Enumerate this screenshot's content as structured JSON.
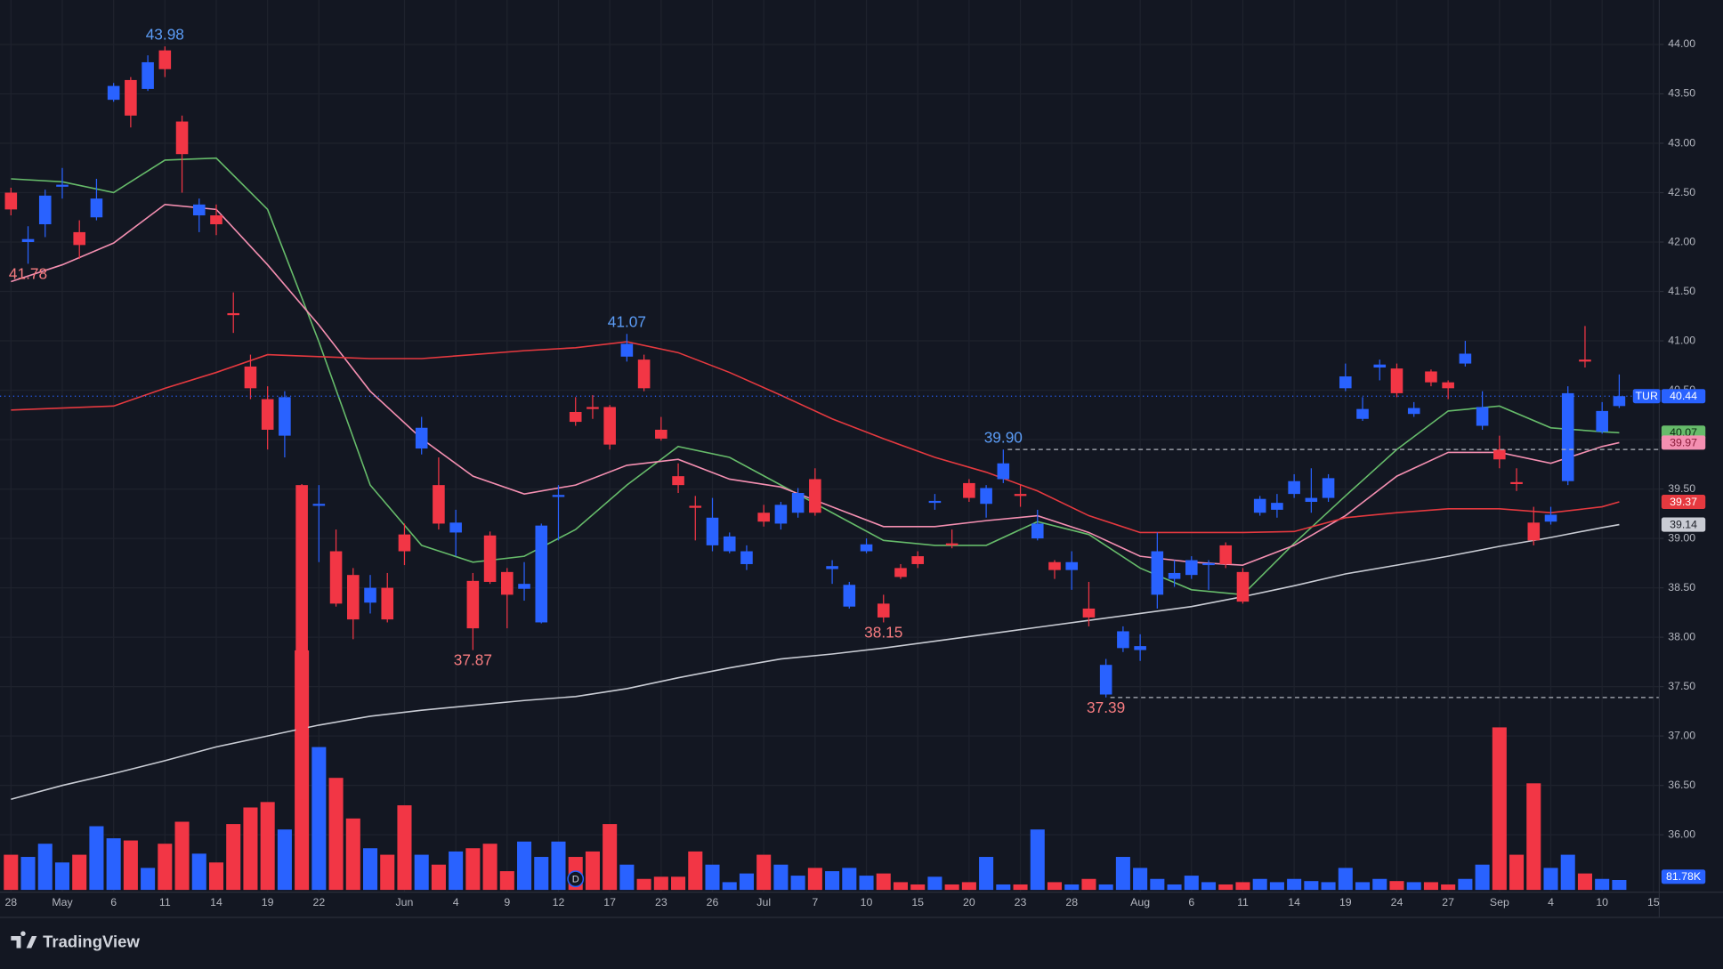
{
  "brand": "TradingView",
  "chart_data": {
    "type": "candlestick",
    "symbol": "TUR",
    "up_color": "#2962ff",
    "down_color": "#f23645",
    "high_label_color": "#5b9cf6",
    "low_label_color": "#f77c80",
    "grid": true,
    "xlim": [
      -0.64,
      96.34
    ],
    "ylim": [
      35.42,
      44.45
    ],
    "volume_ylim": [
      0,
      2400000
    ],
    "xticks": [
      {
        "value": 0,
        "label": "28"
      },
      {
        "value": 3,
        "label": "May"
      },
      {
        "value": 6,
        "label": "6"
      },
      {
        "value": 9,
        "label": "11"
      },
      {
        "value": 12,
        "label": "14"
      },
      {
        "value": 15,
        "label": "19"
      },
      {
        "value": 18,
        "label": "22"
      },
      {
        "value": 23,
        "label": "Jun"
      },
      {
        "value": 26,
        "label": "4"
      },
      {
        "value": 29,
        "label": "9"
      },
      {
        "value": 32,
        "label": "12"
      },
      {
        "value": 35,
        "label": "17"
      },
      {
        "value": 38,
        "label": "23"
      },
      {
        "value": 41,
        "label": "26"
      },
      {
        "value": 44,
        "label": "Jul"
      },
      {
        "value": 47,
        "label": "7"
      },
      {
        "value": 50,
        "label": "10"
      },
      {
        "value": 53,
        "label": "15"
      },
      {
        "value": 56,
        "label": "20"
      },
      {
        "value": 59,
        "label": "23"
      },
      {
        "value": 62,
        "label": "28"
      },
      {
        "value": 66,
        "label": "Aug"
      },
      {
        "value": 69,
        "label": "6"
      },
      {
        "value": 72,
        "label": "11"
      },
      {
        "value": 75,
        "label": "14"
      },
      {
        "value": 78,
        "label": "19"
      },
      {
        "value": 81,
        "label": "24"
      },
      {
        "value": 84,
        "label": "27"
      },
      {
        "value": 87,
        "label": "Sep"
      },
      {
        "value": 90,
        "label": "4"
      },
      {
        "value": 93,
        "label": "10"
      },
      {
        "value": 96,
        "label": "15"
      }
    ],
    "yticks": [
      {
        "value": 36,
        "label": "36.00"
      },
      {
        "value": 36.5,
        "label": "36.50"
      },
      {
        "value": 37,
        "label": "37.00"
      },
      {
        "value": 37.5,
        "label": "37.50"
      },
      {
        "value": 38,
        "label": "38.00"
      },
      {
        "value": 38.5,
        "label": "38.50"
      },
      {
        "value": 39,
        "label": "39.00"
      },
      {
        "value": 39.5,
        "label": "39.50"
      },
      {
        "value": 40,
        "label": "40.00"
      },
      {
        "value": 40.5,
        "label": "40.50"
      },
      {
        "value": 41,
        "label": "41.00"
      },
      {
        "value": 41.5,
        "label": "41.50"
      },
      {
        "value": 42,
        "label": "42.00"
      },
      {
        "value": 42.5,
        "label": "42.50"
      },
      {
        "value": 43,
        "label": "43.00"
      },
      {
        "value": 43.5,
        "label": "43.50"
      },
      {
        "value": 44,
        "label": "44.00"
      }
    ],
    "open": [
      42.5,
      42.0,
      42.18,
      42.56,
      42.1,
      42.25,
      43.44,
      43.64,
      43.55,
      43.94,
      43.22,
      42.27,
      42.27,
      41.28,
      40.74,
      40.41,
      40.04,
      39.54,
      39.33,
      38.87,
      38.63,
      38.35,
      38.5,
      39.04,
      39.91,
      39.54,
      39.06,
      38.57,
      39.03,
      38.66,
      38.49,
      38.15,
      39.42,
      40.28,
      40.33,
      40.33,
      40.84,
      40.81,
      40.1,
      39.63,
      39.33,
      38.93,
      38.87,
      38.74,
      39.26,
      39.15,
      39.26,
      39.6,
      38.69,
      38.31,
      38.87,
      38.34,
      38.7,
      38.82,
      39.36,
      38.95,
      39.56,
      39.35,
      39.6,
      39.45,
      39.0,
      38.76,
      38.68,
      38.29,
      37.42,
      37.89,
      37.87,
      38.43,
      38.59,
      38.63,
      38.73,
      38.93,
      38.66,
      39.26,
      39.29,
      39.45,
      39.37,
      39.41,
      40.52,
      40.21,
      40.73,
      40.72,
      40.26,
      40.69,
      40.58,
      40.77,
      40.14,
      39.9,
      39.57,
      39.16,
      39.17,
      39.58,
      40.81,
      40.08,
      40.34
    ],
    "high": [
      42.55,
      42.16,
      42.53,
      42.75,
      42.22,
      42.64,
      43.61,
      43.67,
      43.89,
      43.98,
      43.28,
      42.44,
      42.38,
      41.49,
      40.86,
      40.54,
      40.49,
      39.55,
      39.54,
      39.09,
      38.7,
      38.63,
      38.65,
      39.15,
      40.23,
      39.82,
      39.29,
      38.65,
      39.07,
      38.7,
      38.76,
      39.15,
      39.54,
      40.43,
      40.45,
      40.35,
      41.07,
      40.86,
      40.23,
      39.76,
      39.43,
      39.41,
      39.06,
      38.93,
      39.34,
      39.37,
      39.51,
      39.71,
      38.78,
      38.56,
      39.0,
      38.43,
      38.74,
      38.87,
      39.45,
      39.09,
      39.6,
      39.54,
      39.9,
      39.54,
      39.29,
      38.78,
      38.87,
      38.56,
      37.78,
      38.11,
      38.03,
      39.06,
      38.78,
      38.82,
      38.78,
      38.96,
      38.7,
      39.43,
      39.45,
      39.65,
      39.71,
      39.65,
      40.77,
      40.43,
      40.81,
      40.77,
      40.38,
      40.71,
      40.6,
      41.0,
      40.49,
      40.04,
      39.71,
      39.32,
      39.32,
      40.54,
      41.15,
      40.38,
      40.66
    ],
    "low": [
      42.27,
      41.78,
      42.05,
      42.44,
      41.83,
      42.22,
      43.42,
      43.16,
      43.53,
      43.67,
      42.5,
      42.1,
      42.07,
      41.08,
      40.41,
      39.9,
      39.82,
      36.3,
      38.76,
      38.31,
      37.98,
      38.24,
      38.15,
      38.73,
      39.85,
      39.09,
      38.82,
      37.87,
      38.54,
      38.09,
      38.37,
      38.14,
      38.98,
      40.14,
      40.21,
      39.9,
      40.79,
      40.49,
      39.99,
      39.46,
      38.98,
      38.87,
      38.85,
      38.68,
      39.12,
      39.09,
      39.21,
      39.23,
      38.54,
      38.29,
      38.85,
      38.15,
      38.59,
      38.7,
      39.29,
      38.9,
      39.37,
      39.21,
      39.56,
      39.32,
      38.98,
      38.59,
      38.48,
      38.11,
      37.39,
      37.85,
      37.76,
      38.29,
      38.51,
      38.59,
      38.48,
      38.7,
      38.34,
      39.23,
      39.21,
      39.41,
      39.26,
      39.37,
      40.49,
      40.19,
      40.6,
      40.43,
      40.23,
      40.54,
      40.41,
      40.74,
      40.1,
      39.71,
      39.48,
      38.93,
      39.14,
      39.54,
      40.73,
      40.06,
      40.32
    ],
    "close": [
      42.33,
      42.03,
      42.47,
      42.58,
      41.97,
      42.44,
      43.58,
      43.28,
      43.82,
      43.75,
      42.89,
      42.38,
      42.18,
      41.26,
      40.52,
      40.1,
      40.43,
      36.36,
      39.35,
      38.34,
      38.18,
      38.5,
      38.18,
      38.87,
      40.12,
      39.15,
      39.16,
      38.09,
      38.56,
      38.43,
      38.54,
      39.13,
      39.44,
      40.18,
      40.31,
      39.95,
      40.97,
      40.52,
      40.01,
      39.54,
      39.31,
      39.21,
      39.02,
      38.87,
      39.17,
      39.34,
      39.46,
      39.26,
      38.72,
      38.53,
      38.94,
      38.2,
      38.61,
      38.74,
      39.38,
      38.93,
      39.41,
      39.51,
      39.76,
      39.43,
      39.15,
      38.68,
      38.76,
      38.2,
      37.72,
      38.06,
      37.91,
      38.87,
      38.65,
      38.78,
      38.75,
      38.74,
      38.36,
      39.4,
      39.36,
      39.58,
      39.41,
      39.61,
      40.64,
      40.31,
      40.76,
      40.47,
      40.32,
      40.58,
      40.52,
      40.87,
      40.33,
      39.8,
      39.55,
      38.98,
      39.24,
      40.47,
      40.79,
      40.29,
      40.44
    ],
    "volume": [
      291000,
      273000,
      382000,
      227000,
      291000,
      527000,
      427000,
      409000,
      182000,
      382000,
      564000,
      300000,
      227000,
      545000,
      682000,
      727000,
      500000,
      1982000,
      1182000,
      927000,
      591000,
      345000,
      291000,
      700000,
      291000,
      209000,
      318000,
      345000,
      382000,
      155000,
      400000,
      273000,
      400000,
      273000,
      318000,
      545000,
      209000,
      91000,
      109000,
      109000,
      318000,
      209000,
      64000,
      136000,
      291000,
      209000,
      118000,
      182000,
      155000,
      182000,
      118000,
      136000,
      64000,
      45000,
      109000,
      45000,
      64000,
      273000,
      45000,
      45000,
      500000,
      64000,
      45000,
      91000,
      45000,
      273000,
      182000,
      91000,
      45000,
      118000,
      64000,
      45000,
      64000,
      91000,
      64000,
      91000,
      73000,
      64000,
      182000,
      64000,
      91000,
      73000,
      64000,
      64000,
      45000,
      91000,
      209000,
      1345000,
      291000,
      882000,
      182000,
      291000,
      136000,
      91000,
      81780
    ],
    "volume_label": "81.78K",
    "dividend": {
      "index": 33,
      "label": "D"
    },
    "moving_averages": [
      {
        "color": "#66bb6a",
        "label_color": "#0b2a10",
        "x": [
          0,
          3,
          6,
          9,
          12,
          15,
          18,
          21,
          24,
          27,
          30,
          33,
          36,
          39,
          42,
          45,
          48,
          51,
          54,
          57,
          60,
          63,
          66,
          69,
          72,
          75,
          78,
          81,
          84,
          87,
          90,
          93,
          94
        ],
        "values": [
          42.64,
          42.61,
          42.5,
          42.83,
          42.85,
          42.33,
          40.99,
          39.54,
          38.93,
          38.76,
          38.82,
          39.09,
          39.54,
          39.93,
          39.82,
          39.54,
          39.26,
          38.98,
          38.93,
          38.93,
          39.17,
          39.04,
          38.7,
          38.48,
          38.43,
          38.95,
          39.43,
          39.9,
          40.29,
          40.34,
          40.12,
          40.08,
          40.07
        ]
      },
      {
        "color": "#f48fb1",
        "label_color": "#8a1c3a",
        "x": [
          0,
          3,
          6,
          9,
          12,
          15,
          18,
          21,
          24,
          27,
          30,
          33,
          36,
          39,
          42,
          45,
          48,
          51,
          54,
          57,
          60,
          63,
          66,
          69,
          72,
          75,
          78,
          81,
          84,
          87,
          90,
          93,
          94
        ],
        "values": [
          41.6,
          41.77,
          41.99,
          42.38,
          42.33,
          41.77,
          41.16,
          40.49,
          40.01,
          39.63,
          39.45,
          39.54,
          39.74,
          39.8,
          39.6,
          39.52,
          39.32,
          39.12,
          39.12,
          39.18,
          39.23,
          39.06,
          38.82,
          38.76,
          38.73,
          38.93,
          39.23,
          39.63,
          39.87,
          39.87,
          39.76,
          39.93,
          39.97
        ]
      },
      {
        "color": "#e5393f",
        "label_color": "#ffffff",
        "x": [
          0,
          3,
          6,
          9,
          12,
          15,
          18,
          21,
          24,
          27,
          30,
          33,
          36,
          39,
          42,
          45,
          48,
          51,
          54,
          57,
          60,
          63,
          66,
          69,
          72,
          75,
          78,
          81,
          84,
          87,
          90,
          93,
          94
        ],
        "values": [
          40.3,
          40.32,
          40.34,
          40.52,
          40.68,
          40.86,
          40.84,
          40.82,
          40.82,
          40.86,
          40.9,
          40.93,
          40.99,
          40.88,
          40.68,
          40.45,
          40.21,
          40.01,
          39.82,
          39.67,
          39.48,
          39.23,
          39.06,
          39.06,
          39.06,
          39.07,
          39.21,
          39.26,
          39.3,
          39.3,
          39.26,
          39.32,
          39.37
        ]
      },
      {
        "color": "#c9ccd4",
        "label_color": "#1b1e27",
        "x": [
          0,
          3,
          6,
          9,
          12,
          15,
          18,
          21,
          24,
          27,
          30,
          33,
          36,
          39,
          42,
          45,
          48,
          51,
          54,
          57,
          60,
          63,
          66,
          69,
          72,
          75,
          78,
          81,
          84,
          87,
          90,
          93,
          94
        ],
        "values": [
          36.36,
          36.5,
          36.62,
          36.75,
          36.89,
          37.0,
          37.11,
          37.2,
          37.26,
          37.31,
          37.36,
          37.4,
          37.48,
          37.59,
          37.69,
          37.78,
          37.83,
          37.89,
          37.96,
          38.03,
          38.1,
          38.17,
          38.24,
          38.31,
          38.41,
          38.52,
          38.64,
          38.73,
          38.82,
          38.92,
          39.01,
          39.11,
          39.14
        ]
      }
    ],
    "annotations": [
      {
        "index": 9,
        "value": 43.98,
        "label": "43.98"
      },
      {
        "index": 1,
        "value": 41.78,
        "label": "41.78"
      },
      {
        "index": 36,
        "value": 41.07,
        "label": "41.07"
      },
      {
        "index": 27,
        "value": 37.87,
        "label": "37.87"
      },
      {
        "index": 51,
        "value": 38.15,
        "label": "38.15"
      },
      {
        "index": 58,
        "value": 39.9,
        "label": "39.90",
        "dashed": true
      },
      {
        "index": 64,
        "value": 37.39,
        "label": "37.39",
        "dashed": true
      }
    ]
  }
}
